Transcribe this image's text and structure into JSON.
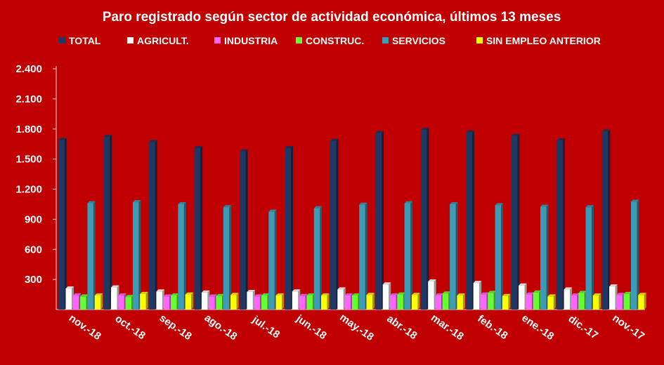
{
  "chart_data": {
    "type": "bar",
    "title": "Paro registrado según sector de actividad económica, últimos 13 meses",
    "categories": [
      "nov.-18",
      "oct.-18",
      "sep.-18",
      "ago.-18",
      "jul.-18",
      "jun.-18",
      "may.-18",
      "abr.-18",
      "mar.-18",
      "feb.-18",
      "ene.-18",
      "dic.-17",
      "nov.-17"
    ],
    "series": [
      {
        "name": "TOTAL",
        "color": "#1f3864",
        "values": [
          1690,
          1720,
          1670,
          1610,
          1575,
          1610,
          1680,
          1760,
          1790,
          1765,
          1730,
          1685,
          1775
        ]
      },
      {
        "name": "AGRICULT.",
        "color": "#ffffff",
        "values": [
          210,
          220,
          180,
          170,
          175,
          180,
          200,
          250,
          280,
          265,
          240,
          200,
          230
        ]
      },
      {
        "name": "INDUSTRIA",
        "color": "#ff66ff",
        "values": [
          140,
          140,
          130,
          130,
          130,
          135,
          140,
          140,
          140,
          150,
          150,
          140,
          145
        ]
      },
      {
        "name": "CONSTRUC.",
        "color": "#66ff33",
        "values": [
          130,
          125,
          140,
          135,
          140,
          140,
          140,
          150,
          160,
          165,
          170,
          165,
          155
        ]
      },
      {
        "name": "SERVICIOS",
        "color": "#3d9bb5",
        "values": [
          1060,
          1070,
          1050,
          1020,
          975,
          1010,
          1045,
          1060,
          1050,
          1040,
          1025,
          1020,
          1075
        ]
      },
      {
        "name": "SIN EMPLEO ANTERIOR",
        "color": "#ffff00",
        "values": [
          140,
          155,
          150,
          145,
          140,
          140,
          145,
          145,
          140,
          135,
          130,
          140,
          145
        ]
      }
    ],
    "ylim": [
      0,
      2400
    ],
    "yticks": [
      "2.400",
      "2.100",
      "1.800",
      "1.500",
      "1.200",
      "900",
      "600",
      "300"
    ],
    "ytick_values": [
      2400,
      2100,
      1800,
      1500,
      1200,
      900,
      600,
      300
    ],
    "legend": "top",
    "grid": false
  }
}
